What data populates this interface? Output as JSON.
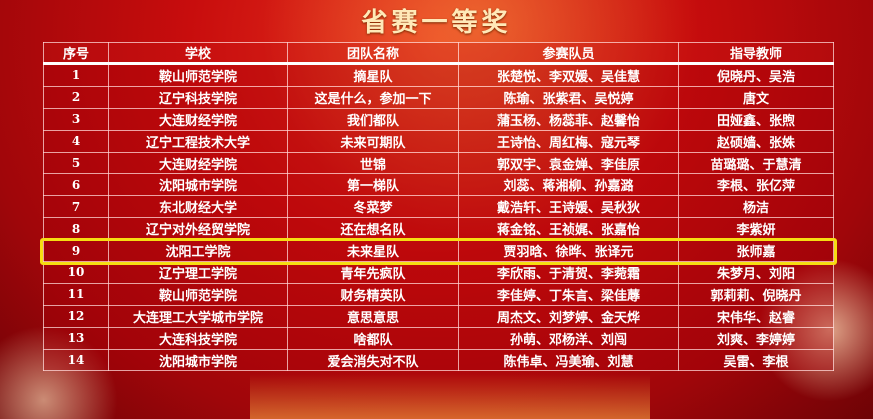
{
  "title": "省赛一等奖",
  "highlight_color": "#f6dd12",
  "headers": [
    "序号",
    "学校",
    "团队名称",
    "参赛队员",
    "指导教师"
  ],
  "highlighted_row": 9,
  "rows": [
    [
      "1",
      "鞍山师范学院",
      "摘星队",
      "张楚悦、李双媛、吴佳慧",
      "倪晓丹、吴浩"
    ],
    [
      "2",
      "辽宁科技学院",
      "这是什么，参加一下",
      "陈瑜、张紫君、吴悦婷",
      "唐文"
    ],
    [
      "3",
      "大连财经学院",
      "我们都队",
      "蒲玉杨、杨蕊菲、赵馨怡",
      "田娅鑫、张煦"
    ],
    [
      "4",
      "辽宁工程技术大学",
      "未来可期队",
      "王诗怡、周红梅、寇元琴",
      "赵硕嫱、张姝"
    ],
    [
      "5",
      "大连财经学院",
      "世锦",
      "郭双宇、袁金婵、李佳原",
      "苗璐璐、于慧清"
    ],
    [
      "6",
      "沈阳城市学院",
      "第一梯队",
      "刘蕊、蒋湘柳、孙嘉潞",
      "李根、张亿萍"
    ],
    [
      "7",
      "东北财经大学",
      "冬菜梦",
      "戴浩轩、王诗媛、吴秋狄",
      "杨洁"
    ],
    [
      "8",
      "辽宁对外经贸学院",
      "还在想名队",
      "蒋金铭、王祯娓、张嘉怡",
      "李紫妍"
    ],
    [
      "9",
      "沈阳工学院",
      "未来星队",
      "贾羽晗、徐晔、张译元",
      "张师嘉"
    ],
    [
      "10",
      "辽宁理工学院",
      "青年先疯队",
      "李欣雨、于清贺、李菀霜",
      "朱梦月、刘阳"
    ],
    [
      "11",
      "鞍山师范学院",
      "财务精英队",
      "李佳婷、丁朱言、梁佳蓐",
      "郭莉莉、倪晓丹"
    ],
    [
      "12",
      "大连理工大学城市学院",
      "意思意思",
      "周杰文、刘梦婷、金天烨",
      "宋伟华、赵睿"
    ],
    [
      "13",
      "大连科技学院",
      "啥都队",
      "孙萌、邓杨洋、刘闯",
      "刘爽、李婷婷"
    ],
    [
      "14",
      "沈阳城市学院",
      "爱会消失对不队",
      "陈伟卓、冯美瑜、刘慧",
      "吴雷、李根"
    ]
  ]
}
